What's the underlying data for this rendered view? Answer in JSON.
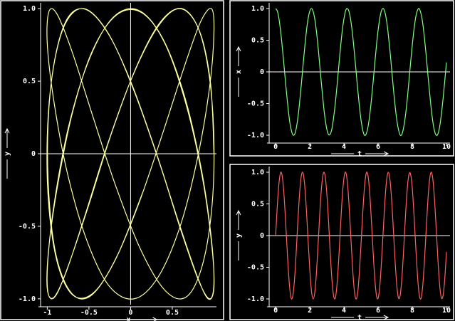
{
  "chart_data": [
    {
      "type": "parametric",
      "xlabel": "x",
      "ylabel": "y",
      "color": "#ffffa0",
      "xlim": [
        -1.08,
        1.03
      ],
      "ylim": [
        -1.04,
        1.04
      ],
      "xticks": [
        -1,
        -0.5,
        0,
        0.5
      ],
      "yticks": [
        {
          "value": 1,
          "label": "1.0"
        },
        0.5,
        0,
        -0.5,
        {
          "value": -1,
          "label": "-1.0"
        }
      ]
    },
    {
      "type": "line",
      "xlabel": "t",
      "ylabel": "x",
      "xlim": [
        -0.38,
        10.21
      ],
      "ylim": [
        -1.09,
        1.09
      ],
      "xticks": [
        0,
        2,
        4,
        6,
        8,
        10
      ],
      "yticks": [
        {
          "value": 1,
          "label": "1.0"
        },
        0.5,
        0,
        -0.5,
        {
          "value": -1,
          "label": "-1.0"
        }
      ],
      "x": [
        0,
        0.1,
        0.2,
        0.3,
        0.4,
        0.5,
        0.6,
        0.7,
        0.8,
        0.9,
        1,
        1.1,
        1.2,
        1.3,
        1.4,
        1.5,
        1.6,
        1.7,
        1.8,
        1.9,
        2,
        2.1,
        2.2,
        2.3,
        2.4,
        2.5,
        2.6,
        2.7,
        2.8,
        2.9,
        3,
        3.1,
        3.2,
        3.3,
        3.4,
        3.5,
        3.6,
        3.7,
        3.8,
        3.9,
        4,
        4.1,
        4.2,
        4.3,
        4.4,
        4.5,
        4.6,
        4.7,
        4.8,
        4.9,
        5,
        5.1,
        5.2,
        5.3,
        5.4,
        5.5,
        5.6,
        5.7,
        5.8,
        5.9,
        6,
        6.1,
        6.2,
        6.3,
        6.4,
        6.5,
        6.6,
        6.7,
        6.8,
        6.9,
        7,
        7.1,
        7.2,
        7.3,
        7.4,
        7.5,
        7.6,
        7.7,
        7.8,
        7.9,
        8,
        8.1,
        8.2,
        8.3,
        8.4,
        8.5,
        8.6,
        8.7,
        8.8,
        8.9,
        9,
        9.1,
        9.2,
        9.3,
        9.4,
        9.5,
        9.6,
        9.7,
        9.8,
        9.9,
        10
      ],
      "series": [
        {
          "color": "#80ff80",
          "values": [
            1,
            0.96,
            0.83,
            0.62,
            0.36,
            0.07,
            -0.23,
            -0.5,
            -0.74,
            -0.9,
            -0.99,
            -0.99,
            -0.9,
            -0.73,
            -0.49,
            -0.21,
            0.09,
            0.38,
            0.64,
            0.84,
            0.96,
            1,
            0.95,
            0.82,
            0.61,
            0.35,
            0.05,
            -0.24,
            -0.52,
            -0.75,
            -0.91,
            -0.99,
            -0.98,
            -0.89,
            -0.71,
            -0.48,
            -0.2,
            0.1,
            0.39,
            0.65,
            0.84,
            0.97,
            1,
            0.95,
            0.81,
            0.6,
            0.33,
            0.04,
            -0.26,
            -0.53,
            -0.76,
            -0.92,
            -1,
            -0.98,
            -0.88,
            -0.7,
            -0.46,
            -0.18,
            0.12,
            0.41,
            0.66,
            0.85,
            0.97,
            1,
            0.94,
            0.8,
            0.58,
            0.32,
            0.02,
            -0.28,
            -0.55,
            -0.77,
            -0.92,
            -1,
            -0.98,
            -0.87,
            -0.69,
            -0.45,
            -0.16,
            0.14,
            0.42,
            0.67,
            0.86,
            0.97,
            1,
            0.93,
            0.79,
            0.57,
            0.3,
            0,
            -0.29,
            -0.56,
            -0.78,
            -0.93,
            -1,
            -0.98,
            -0.87,
            -0.68,
            -0.43,
            -0.15,
            0.15
          ]
        }
      ]
    },
    {
      "type": "line",
      "xlabel": "t",
      "ylabel": "y",
      "xlim": [
        -0.38,
        10.21
      ],
      "ylim": [
        -1.09,
        1.09
      ],
      "xticks": [
        0,
        2,
        4,
        6,
        8,
        10
      ],
      "yticks": [
        {
          "value": 1,
          "label": "1.0"
        },
        0.5,
        0,
        -0.5,
        {
          "value": -1,
          "label": "-1.0"
        }
      ],
      "x": [
        0,
        0.1,
        0.2,
        0.3,
        0.4,
        0.5,
        0.6,
        0.7,
        0.8,
        0.9,
        1,
        1.1,
        1.2,
        1.3,
        1.4,
        1.5,
        1.6,
        1.7,
        1.8,
        1.9,
        2,
        2.1,
        2.2,
        2.3,
        2.4,
        2.5,
        2.6,
        2.7,
        2.8,
        2.9,
        3,
        3.1,
        3.2,
        3.3,
        3.4,
        3.5,
        3.6,
        3.7,
        3.8,
        3.9,
        4,
        4.1,
        4.2,
        4.3,
        4.4,
        4.5,
        4.6,
        4.7,
        4.8,
        4.9,
        5,
        5.1,
        5.2,
        5.3,
        5.4,
        5.5,
        5.6,
        5.7,
        5.8,
        5.9,
        6,
        6.1,
        6.2,
        6.3,
        6.4,
        6.5,
        6.6,
        6.7,
        6.8,
        6.9,
        7,
        7.1,
        7.2,
        7.3,
        7.4,
        7.5,
        7.6,
        7.7,
        7.8,
        7.9,
        8,
        8.1,
        8.2,
        8.3,
        8.4,
        8.5,
        8.6,
        8.7,
        8.8,
        8.9,
        9,
        9.1,
        9.2,
        9.3,
        9.4,
        9.5,
        9.6,
        9.7,
        9.8,
        9.9,
        10
      ],
      "series": [
        {
          "color": "#ff6060",
          "values": [
            0,
            0.48,
            0.84,
            1,
            0.91,
            0.6,
            0.14,
            -0.35,
            -0.76,
            -0.98,
            -0.96,
            -0.71,
            -0.28,
            0.22,
            0.66,
            0.94,
            0.99,
            0.8,
            0.41,
            -0.08,
            -0.54,
            -0.88,
            -1,
            -0.88,
            -0.54,
            -0.07,
            0.42,
            0.8,
            0.99,
            0.94,
            0.65,
            0.21,
            -0.29,
            -0.71,
            -0.96,
            -0.98,
            -0.75,
            -0.34,
            0.15,
            0.61,
            0.91,
            1,
            0.84,
            0.47,
            -0.01,
            -0.49,
            -0.85,
            -1,
            -0.91,
            -0.59,
            -0.13,
            0.36,
            0.76,
            0.98,
            0.96,
            0.7,
            0.27,
            -0.22,
            -0.66,
            -0.94,
            -0.99,
            -0.79,
            -0.4,
            0.08,
            0.55,
            0.88,
            1,
            0.87,
            0.53,
            0.06,
            -0.43,
            -0.81,
            -0.99,
            -0.93,
            -0.64,
            -0.2,
            0.3,
            0.72,
            0.96,
            0.97,
            0.75,
            0.33,
            -0.16,
            -0.61,
            -0.92,
            -1,
            -0.83,
            -0.46,
            0.02,
            0.5,
            0.85,
            1,
            0.9,
            0.58,
            0.12,
            -0.37,
            -0.77,
            -0.98,
            -0.95,
            -0.69,
            -0.26
          ]
        }
      ]
    }
  ]
}
